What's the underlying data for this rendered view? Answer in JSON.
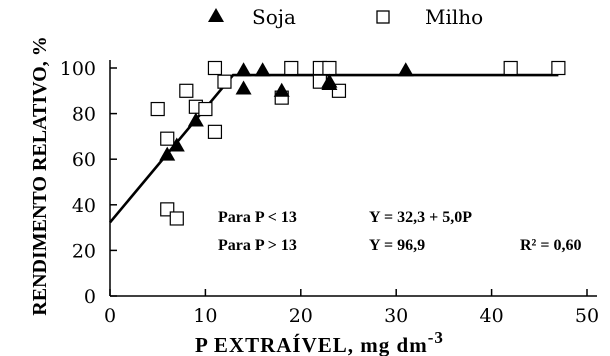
{
  "chart_data": {
    "type": "scatter",
    "xlabel": "P EXTRAÍVEL, mg dm",
    "xlabel_sup": "-3",
    "ylabel": "RENDIMENTO RELATIVO, %",
    "xlim": [
      0,
      50
    ],
    "ylim": [
      0,
      100
    ],
    "xticks": [
      "0",
      "10",
      "20",
      "30",
      "40",
      "50"
    ],
    "yticks": [
      "0",
      "20",
      "40",
      "60",
      "80",
      "100"
    ],
    "grid": false,
    "legend_position": "top",
    "series": [
      {
        "name": "Soja",
        "marker": "filled-triangle",
        "points": [
          [
            6,
            62
          ],
          [
            7,
            66
          ],
          [
            9,
            77
          ],
          [
            14,
            91
          ],
          [
            14,
            99
          ],
          [
            16,
            99
          ],
          [
            18,
            90
          ],
          [
            23,
            93
          ],
          [
            23,
            94
          ],
          [
            31,
            99
          ]
        ]
      },
      {
        "name": "Milho",
        "marker": "open-square",
        "points": [
          [
            5,
            82
          ],
          [
            6,
            38
          ],
          [
            6,
            69
          ],
          [
            7,
            34
          ],
          [
            8,
            90
          ],
          [
            9,
            83
          ],
          [
            10,
            82
          ],
          [
            11,
            72
          ],
          [
            11,
            100
          ],
          [
            12,
            94
          ],
          [
            18,
            87
          ],
          [
            19,
            100
          ],
          [
            22,
            94
          ],
          [
            22,
            100
          ],
          [
            23,
            100
          ],
          [
            24,
            90
          ],
          [
            42,
            100
          ],
          [
            47,
            100
          ]
        ]
      }
    ],
    "fit_line": [
      [
        0,
        32.3
      ],
      [
        12.9,
        96.9
      ],
      [
        47,
        96.9
      ]
    ],
    "annotations": [
      {
        "condition": "Para P < 13",
        "equation": "Y = 32,3 + 5,0P",
        "r2": ""
      },
      {
        "condition": "Para P > 13",
        "equation": "Y = 96,9",
        "r2": "R² = 0,60"
      }
    ]
  }
}
